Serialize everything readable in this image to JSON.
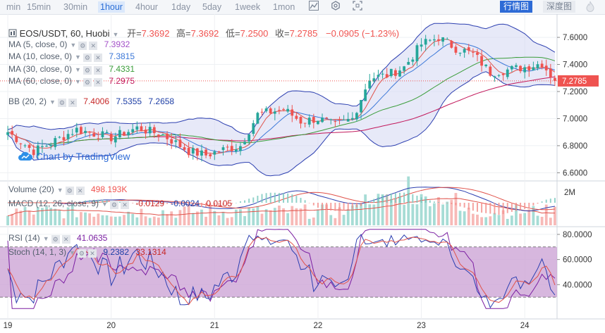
{
  "toolbar": {
    "timeframes": [
      {
        "label": "min"
      },
      {
        "label": "15min"
      },
      {
        "label": "30min"
      },
      {
        "label": "1hour",
        "active": true
      },
      {
        "label": "4hour"
      },
      {
        "label": "1day"
      },
      {
        "label": "5day"
      },
      {
        "label": "1week"
      },
      {
        "label": "1mon"
      }
    ],
    "icons": [
      "line-chart-icon",
      "settings-icon",
      "fullscreen-icon"
    ],
    "view_market": "行情图",
    "view_depth": "深度图"
  },
  "header": {
    "symbol": "EOS/USDT, 60, Huobi",
    "open_label": "开=",
    "open": "7.3692",
    "high_label": "高=",
    "high": "7.3692",
    "low_label": "低=",
    "low": "7.2500",
    "close_label": "收=",
    "close": "7.2785",
    "change": "−0.0905 (−1.23%)"
  },
  "indicators": {
    "ma5": {
      "label": "MA (5, close, 0)",
      "value": "7.3932",
      "color": "#a34fc8"
    },
    "ma10": {
      "label": "MA (10, close, 0)",
      "value": "7.3815",
      "color": "#3c78d8"
    },
    "ma30": {
      "label": "MA (30, close, 0)",
      "value": "7.4331",
      "color": "#3a9d3a"
    },
    "ma60": {
      "label": "MA (60, close, 0)",
      "value": "7.2975",
      "color": "#c2185b"
    },
    "bb": {
      "label": "BB (20, 2)",
      "basis": "7.4006",
      "upper": "7.5355",
      "lower": "7.2658"
    },
    "volume": {
      "label": "Volume (20)",
      "value": "498.193K"
    },
    "macd": {
      "label": "MACD (12, 26, close, 9)",
      "hist": "-0.0129",
      "macd": "-0.0024",
      "signal": "0.0105"
    },
    "rsi": {
      "label": "RSI (14)",
      "value": "41.0635"
    },
    "stoch": {
      "label": "Stoch (14, 1, 3)",
      "k": "9.2382",
      "d": "33.1314"
    }
  },
  "watermark": "Chart by TradingView",
  "last_price": "7.2785",
  "colors": {
    "up": "#26a69a",
    "down": "#ef5350",
    "bb_fill": "#d4d7f2",
    "rsi_fill": "#cda5d6"
  },
  "chart_data": {
    "type": "candlestick",
    "price_axis": {
      "ylim": [
        6.55,
        7.72
      ],
      "ticks": [
        "7.6000",
        "7.4000",
        "7.2000",
        "7.0000",
        "6.8000",
        "6.6000"
      ],
      "tick_values": [
        7.6,
        7.4,
        7.2,
        7.0,
        6.8,
        6.6
      ]
    },
    "volume_axis": {
      "ticks": [
        "2M"
      ]
    },
    "rsi_axis": {
      "ylim": [
        20,
        85
      ],
      "ticks": [
        "80.0000",
        "60.0000",
        "40.0000"
      ],
      "tick_values": [
        80,
        60,
        40
      ],
      "bands": [
        70,
        30
      ]
    },
    "x_labels": [
      {
        "label": "19",
        "i": 0
      },
      {
        "label": "20",
        "i": 24
      },
      {
        "label": "21",
        "i": 48
      },
      {
        "label": "22",
        "i": 72
      },
      {
        "label": "23",
        "i": 96
      },
      {
        "label": "24",
        "i": 120
      }
    ],
    "x_count": 128,
    "anchors": [
      [
        0,
        6.9
      ],
      [
        6,
        6.76
      ],
      [
        10,
        6.82
      ],
      [
        16,
        6.92
      ],
      [
        24,
        6.86
      ],
      [
        30,
        6.93
      ],
      [
        36,
        6.88
      ],
      [
        42,
        6.76
      ],
      [
        46,
        6.73
      ],
      [
        50,
        6.77
      ],
      [
        54,
        6.8
      ],
      [
        58,
        7.03
      ],
      [
        64,
        7.07
      ],
      [
        68,
        6.98
      ],
      [
        72,
        7.0
      ],
      [
        76,
        6.95
      ],
      [
        80,
        7.0
      ],
      [
        84,
        7.3
      ],
      [
        88,
        7.32
      ],
      [
        92,
        7.38
      ],
      [
        96,
        7.55
      ],
      [
        100,
        7.6
      ],
      [
        104,
        7.52
      ],
      [
        108,
        7.48
      ],
      [
        112,
        7.34
      ],
      [
        116,
        7.36
      ],
      [
        120,
        7.38
      ],
      [
        124,
        7.41
      ],
      [
        127,
        7.28
      ]
    ]
  }
}
